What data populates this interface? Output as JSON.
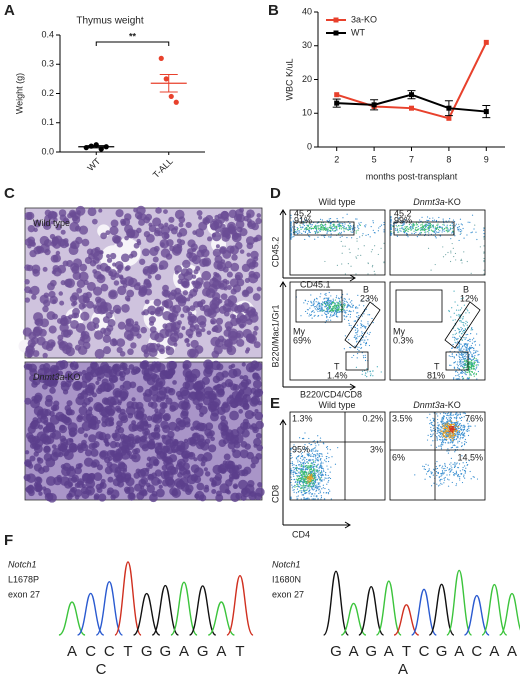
{
  "panel_letters": [
    "A",
    "B",
    "C",
    "D",
    "E",
    "F"
  ],
  "chart_data": [
    {
      "type": "strip",
      "title": "Thymus weight",
      "y_label": "Weight (g)",
      "categories": [
        "WT",
        "T-ALL"
      ],
      "points": [
        [
          0.015,
          0.02,
          0.025,
          0.01,
          0.018
        ],
        [
          0.32,
          0.25,
          0.19,
          0.17
        ]
      ],
      "colors": [
        "#000000",
        "#e8412c"
      ],
      "means": [
        0.018,
        0.235
      ],
      "errors": [
        0.004,
        0.03
      ],
      "ylim": [
        0,
        0.4
      ],
      "yticks": [
        {
          "value": 0,
          "label": "0.0"
        },
        0.1,
        0.2,
        0.3,
        0.4
      ],
      "annotation": "**"
    },
    {
      "type": "line",
      "y_label": "WBC K/uL",
      "x_label": "months post-transplant",
      "categories": [
        "2",
        "5",
        "7",
        "8",
        "9"
      ],
      "series": [
        {
          "name": "3a-KO",
          "color": "#e8412c",
          "values": [
            15.5,
            12,
            11.5,
            8.5,
            31
          ]
        },
        {
          "name": "WT",
          "color": "#000000",
          "values": [
            13,
            12.5,
            15.5,
            11.5,
            10.5
          ],
          "errors": [
            1.2,
            1.5,
            1.2,
            2.2,
            1.8
          ]
        }
      ],
      "ylim": [
        0,
        40
      ],
      "yticks": [
        0,
        10,
        20,
        30,
        40
      ],
      "legend": "upper left"
    }
  ],
  "panel_c": {
    "labels": [
      {
        "rest": "Wild type"
      },
      {
        "italic": "Dnmt3a",
        "rest": "-KO"
      }
    ]
  },
  "panel_d": {
    "headers": [
      {
        "rest": "Wild type"
      },
      {
        "italic": "Dnmt3a",
        "rest": "-KO"
      }
    ],
    "top_axes": [
      "CD45.2",
      "CD45.1"
    ],
    "bottom_axes": [
      "B220/Mac1/Gr1",
      "B220/CD4/CD8"
    ],
    "top_gates": [
      [
        "45.2",
        "91%"
      ],
      [
        "45.2",
        "99%"
      ]
    ],
    "bottom_gates": [
      {
        "B": [
          "B",
          "23%"
        ],
        "My": [
          "My",
          "69%"
        ],
        "T": [
          "T",
          "1.4%"
        ]
      },
      {
        "B": [
          "B",
          "12%"
        ],
        "My": [
          "My",
          "0.3%"
        ],
        "T": [
          "T",
          "81%"
        ]
      }
    ]
  },
  "panel_e": {
    "headers": [
      {
        "rest": "Wild type"
      },
      {
        "italic": "Dnmt3a",
        "rest": "-KO"
      }
    ],
    "axes": [
      "CD8",
      "CD4"
    ],
    "quadrants": [
      [
        "1.3%",
        "0.2%",
        "95%",
        "3%"
      ],
      [
        "3.5%",
        "76%",
        "6%",
        "14.5%"
      ]
    ]
  },
  "panel_f": [
    {
      "gene": "Notch1",
      "mutation": "L1678P",
      "exon": "exon 27",
      "bases": [
        "A",
        "C",
        "C",
        "T",
        "G",
        "G",
        "A",
        "G",
        "A",
        "T"
      ],
      "variant": "C"
    },
    {
      "gene": "Notch1",
      "mutation": "I1680N",
      "exon": "exon 27",
      "bases": [
        "G",
        "A",
        "G",
        "A",
        "T",
        "C",
        "G",
        "A",
        "C",
        "A",
        "A"
      ],
      "variant": "A"
    }
  ]
}
